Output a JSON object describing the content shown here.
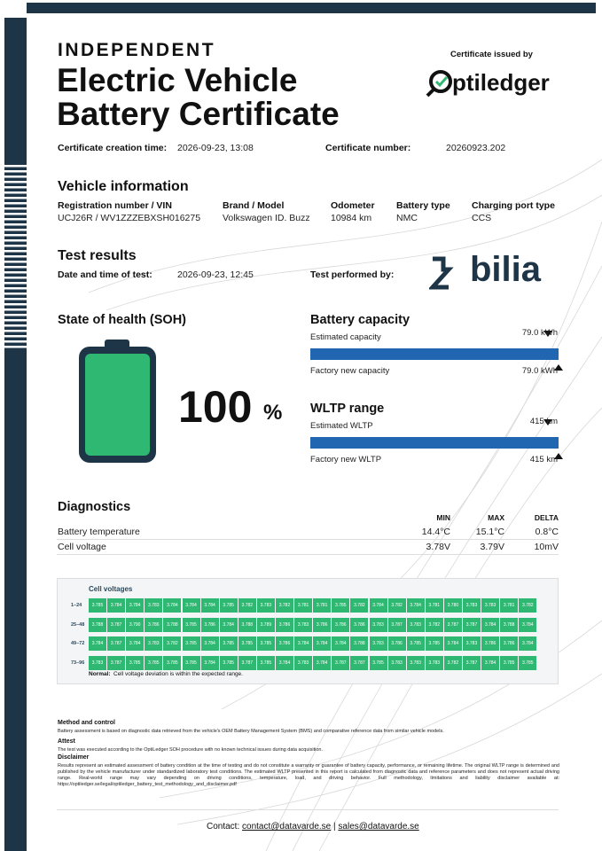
{
  "header": {
    "kicker": "INDEPENDENT",
    "title_1": "Electric Vehicle",
    "title_2": "Battery Certificate",
    "issued_by": "Certificate issued by",
    "issuer": "ptiledger"
  },
  "meta": {
    "creation_label": "Certificate creation time:",
    "creation_value": "2026-09-23, 13:08",
    "number_label": "Certificate number:",
    "number_value": "20260923.202"
  },
  "vehicle": {
    "heading": "Vehicle information",
    "fields": [
      {
        "label": "Registration number / VIN",
        "value": "UCJ26R / WV1ZZZEBXSH016275"
      },
      {
        "label": "Brand / Model",
        "value": "Volkswagen ID. Buzz"
      },
      {
        "label": "Odometer",
        "value": "10984 km"
      },
      {
        "label": "Battery type",
        "value": "NMC"
      },
      {
        "label": "Charging port type",
        "value": "CCS"
      }
    ]
  },
  "test": {
    "heading": "Test results",
    "date_label": "Date and time of test:",
    "date_value": "2026-09-23, 12:45",
    "performed_label": "Test performed by:",
    "performer": "bilia"
  },
  "soh": {
    "heading": "State of health (SOH)",
    "value": "100",
    "unit": "%"
  },
  "capacity": {
    "heading": "Battery capacity",
    "estimated_label": "Estimated capacity",
    "estimated_value": "79.0 kWh",
    "factory_label": "Factory new capacity",
    "factory_value": "79.0 kWh"
  },
  "wltp": {
    "heading": "WLTP range",
    "estimated_label": "Estimated WLTP",
    "estimated_value": "415 km",
    "factory_label": "Factory new WLTP",
    "factory_value": "415 km"
  },
  "diagnostics": {
    "heading": "Diagnostics",
    "columns": [
      "MIN",
      "MAX",
      "DELTA"
    ],
    "rows": [
      [
        "Battery temperature",
        "14.4°C",
        "15.1°C",
        "0.8°C"
      ],
      [
        "Cell voltage",
        "3.78V",
        "3.79V",
        "10mV"
      ]
    ]
  },
  "cells": {
    "heading": "Cell voltages",
    "row_labels": [
      "1–24",
      "25–48",
      "49–72",
      "73–96"
    ],
    "rows": [
      [
        "3.785",
        "3.784",
        "3.784",
        "3.783",
        "3.784",
        "3.784",
        "3.784",
        "3.785",
        "3.782",
        "3.783",
        "3.782",
        "3.781",
        "3.781",
        "3.785",
        "3.782",
        "3.784",
        "3.782",
        "3.784",
        "3.781",
        "3.780",
        "3.783",
        "3.783",
        "3.781",
        "3.782"
      ],
      [
        "3.788",
        "3.787",
        "3.790",
        "3.786",
        "3.788",
        "3.785",
        "3.786",
        "3.784",
        "3.788",
        "3.789",
        "3.786",
        "3.783",
        "3.786",
        "3.786",
        "3.786",
        "3.783",
        "3.787",
        "3.783",
        "3.782",
        "3.787",
        "3.787",
        "3.784",
        "3.788",
        "3.784"
      ],
      [
        "3.784",
        "3.787",
        "3.784",
        "3.783",
        "3.782",
        "3.785",
        "3.784",
        "3.785",
        "3.785",
        "3.785",
        "3.786",
        "3.784",
        "3.784",
        "3.784",
        "3.788",
        "3.783",
        "3.786",
        "3.785",
        "3.785",
        "3.784",
        "3.783",
        "3.786",
        "3.786",
        "3.784"
      ],
      [
        "3.783",
        "3.787",
        "3.785",
        "3.785",
        "3.785",
        "3.785",
        "3.784",
        "3.785",
        "3.787",
        "3.785",
        "3.784",
        "3.783",
        "3.784",
        "3.787",
        "3.787",
        "3.785",
        "3.783",
        "3.783",
        "3.783",
        "3.782",
        "3.787",
        "3.784",
        "3.785",
        "3.785"
      ]
    ],
    "note_label": "Normal:",
    "note": "Cell voltage deviation is within the expected range."
  },
  "method": [
    {
      "title": "Method and control",
      "text": "Battery assessment is based on diagnostic data retrieved from the vehicle's OEM Battery Management System (BMS) and comparative reference data from similar vehicle models."
    },
    {
      "title": "Attest",
      "text": "The test was executed according to the OptiLedger SOH procedure with no known technical issues during data acquisition."
    },
    {
      "title": "Disclaimer",
      "text": "Results represent an estimated assessment of battery condition at the time of testing and do not constitute a warranty or guarantee of battery capacity, performance, or remaining lifetime. The original WLTP range is determined and published by the vehicle manufacturer under standardized laboratory test conditions. The estimated WLTP presented in this report is calculated from diagnostic data and reference parameters and does not represent actual driving range. Real-world range may vary depending on driving conditions, temperature, load, and driving behavior. Full methodology, limitations and liability disclaimer available at: https://optiledger.se/legal/optiledger_battery_test_methodology_and_disclaimer.pdf"
    }
  ],
  "contact": {
    "label": "Contact:",
    "email_1": "contact@datavarde.se",
    "separator": "|",
    "email_2": "sales@datavarde.se"
  }
}
